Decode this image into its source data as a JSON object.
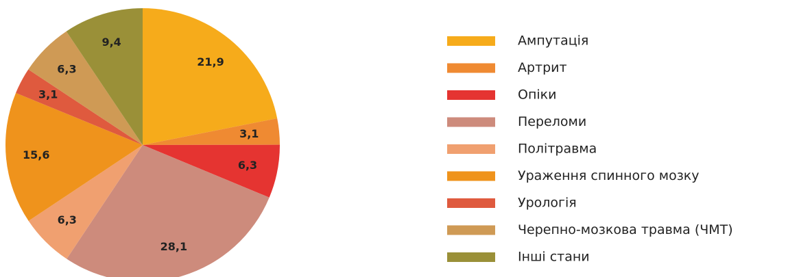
{
  "chart_data": {
    "type": "pie",
    "categories": [
      "Ампутація",
      "Артрит",
      "Опіки",
      "Переломи",
      "Політравма",
      "Ураження спинного мозку",
      "Урологія",
      "Черепно-мозкова травма (ЧМТ)",
      "Інші стани"
    ],
    "values": [
      21.9,
      3.1,
      6.3,
      28.1,
      6.3,
      15.6,
      3.1,
      6.3,
      9.4
    ],
    "value_labels": [
      "21,9",
      "3,1",
      "6,3",
      "28,1",
      "6,3",
      "15,6",
      "3,1",
      "6,3",
      "9,4"
    ],
    "colors": [
      "#f6ab1b",
      "#ef8a32",
      "#e53431",
      "#cd8b7c",
      "#f0a070",
      "#ef931c",
      "#df5a3e",
      "#cf9a55",
      "#9a9038"
    ]
  }
}
